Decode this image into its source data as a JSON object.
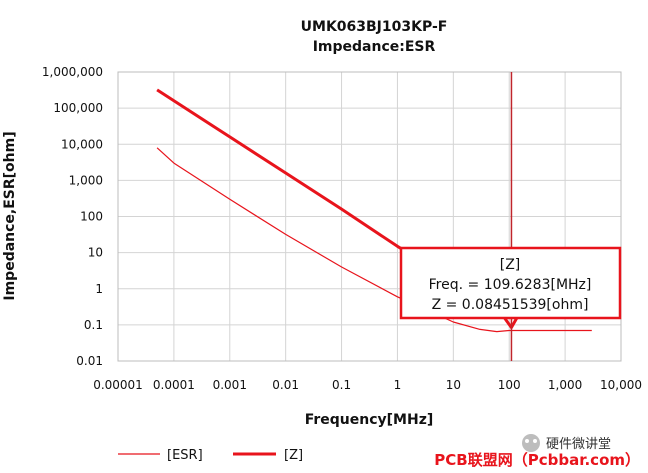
{
  "chart_data": {
    "type": "line",
    "title": "UMK063BJ103KP-F",
    "subtitle": "Impedance:ESR",
    "xlabel": "Frequency[MHz]",
    "ylabel": "Impedance,ESR[ohm]",
    "x_scale": "log",
    "y_scale": "log",
    "xlim": [
      1e-05,
      10000
    ],
    "ylim": [
      0.01,
      1000000
    ],
    "x_ticks": [
      "0.00001",
      "0.0001",
      "0.001",
      "0.01",
      "0.1",
      "1",
      "10",
      "100",
      "1,000",
      "10,000"
    ],
    "y_ticks": [
      "0.01",
      "0.1",
      "1",
      "10",
      "100",
      "1,000",
      "10,000",
      "100,000",
      "1,000,000"
    ],
    "grid": true,
    "legend_position": "bottom-left",
    "series": [
      {
        "name": "[ESR]",
        "color": "#e8141c",
        "width": "thin",
        "x": [
          5e-05,
          0.0001,
          0.001,
          0.01,
          0.1,
          1,
          3,
          10,
          30,
          60,
          100,
          200,
          500,
          1000,
          3000
        ],
        "y": [
          8000,
          3000,
          300,
          32,
          4,
          0.6,
          0.28,
          0.12,
          0.075,
          0.065,
          0.07,
          0.07,
          0.07,
          0.07,
          0.07
        ]
      },
      {
        "name": "[Z]",
        "color": "#e8141c",
        "width": "thick",
        "x": [
          5e-05,
          0.0001,
          0.001,
          0.01,
          0.1,
          1,
          3,
          10,
          30,
          70,
          109.6,
          150,
          300,
          1000,
          3000
        ],
        "y": [
          320000,
          160000,
          16000,
          1600,
          160,
          15,
          5.3,
          1.6,
          0.55,
          0.22,
          0.0845,
          0.2,
          0.4,
          1.4,
          4.5
        ]
      }
    ],
    "cursor": {
      "x": 109.6283,
      "title": "[Z]",
      "freq_label": "Freq. = 109.6283[MHz]",
      "z_label": "Z = 0.08451539[ohm]"
    }
  },
  "watermark": {
    "primary": "PCB联盟网（Pcbbar.com）",
    "secondary": "硬件微讲堂"
  }
}
